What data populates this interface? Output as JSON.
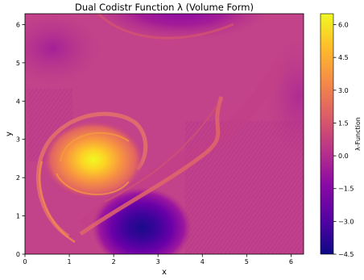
{
  "chart_data": {
    "type": "heatmap",
    "title": "Dual Codistr Function λ (Volume Form)",
    "xlabel": "x",
    "ylabel": "y",
    "xlim": [
      0,
      6.283
    ],
    "ylim": [
      0,
      6.283
    ],
    "x_ticks": [
      "0",
      "1",
      "2",
      "3",
      "4",
      "5",
      "6"
    ],
    "y_ticks": [
      "0",
      "1",
      "2",
      "3",
      "4",
      "5",
      "6"
    ],
    "colorbar": {
      "label": "λ-Function",
      "range": [
        -4.5,
        6.5
      ],
      "ticks": [
        "−4.5",
        "−3.0",
        "−1.5",
        "0.0",
        "1.5",
        "3.0",
        "4.5",
        "6.0"
      ],
      "colormap": "plasma",
      "colors": [
        "#0d0887",
        "#5302a3",
        "#8b0aa5",
        "#b83289",
        "#db5c68",
        "#f48849",
        "#febd2a",
        "#f0f921"
      ]
    },
    "features": [
      {
        "kind": "maximum",
        "x": 1.55,
        "y": 2.4,
        "value": 6.2
      },
      {
        "kind": "minimum",
        "x": 2.65,
        "y": 0.6,
        "value": -4.3
      },
      {
        "kind": "filament",
        "description": "spiral arm wrapping from the maximum outward around its left and down to the lower-left, then up-right toward x≈4.4, y≈3.6"
      },
      {
        "kind": "background",
        "value": 0.5
      }
    ],
    "grid": false,
    "legend": "colorbar-right"
  }
}
